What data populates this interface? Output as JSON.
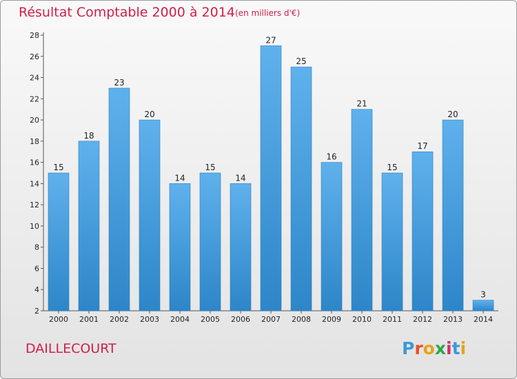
{
  "header": {
    "title": "Résultat Comptable 2000 à 2014",
    "subtitle": "(en milliers d'€)"
  },
  "footer": {
    "commune": "DAILLECOURT",
    "logo": "Proxiti"
  },
  "colors": {
    "title": "#d0204a",
    "bar_light": "#5fb1ec",
    "bar_dark": "#2d86c8"
  },
  "chart_data": {
    "type": "bar",
    "title": "Résultat Comptable 2000 à 2014",
    "subtitle": "(en milliers d'€)",
    "xlabel": "",
    "ylabel": "",
    "categories": [
      "2000",
      "2001",
      "2002",
      "2003",
      "2004",
      "2005",
      "2006",
      "2007",
      "2008",
      "2009",
      "2010",
      "2011",
      "2012",
      "2013",
      "2014"
    ],
    "values": [
      15,
      18,
      23,
      20,
      14,
      15,
      14,
      27,
      25,
      16,
      21,
      15,
      17,
      20,
      3
    ],
    "ylim": [
      2,
      28
    ],
    "yticks": [
      2,
      4,
      6,
      8,
      10,
      12,
      14,
      16,
      18,
      20,
      22,
      24,
      26,
      28
    ],
    "grid": false,
    "legend": "none"
  }
}
